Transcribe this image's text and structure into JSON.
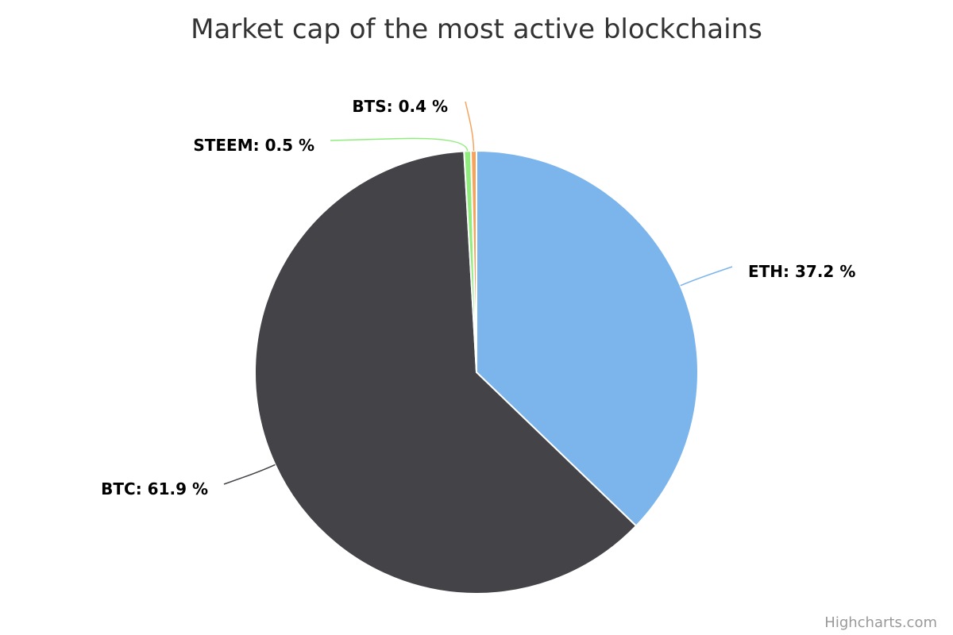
{
  "chart_data": {
    "type": "pie",
    "title": "Market cap of the most active blockchains",
    "slices": [
      {
        "name": "ETH",
        "value": 37.2,
        "label": "ETH: 37.2 %",
        "color": "#7cb5ec"
      },
      {
        "name": "BTC",
        "value": 61.9,
        "label": "BTC: 61.9 %",
        "color": "#434348"
      },
      {
        "name": "STEEM",
        "value": 0.5,
        "label": "STEEM: 0.5 %",
        "color": "#90ed7d"
      },
      {
        "name": "BTS",
        "value": 0.4,
        "label": "BTS: 0.4 %",
        "color": "#f7a35c"
      }
    ],
    "legend": false
  },
  "credits": "Highcharts.com"
}
